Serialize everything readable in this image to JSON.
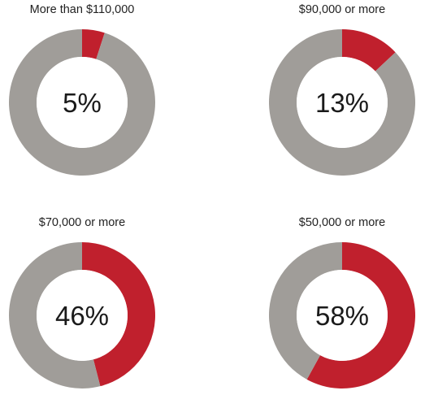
{
  "colors": {
    "highlight": "#c0202d",
    "remainder": "#a09d99",
    "center": "#ffffff",
    "text": "#1a1a1a"
  },
  "chart_data": [
    {
      "type": "pie",
      "title": "More than $110,000",
      "slices": [
        {
          "label": "share",
          "value": 5
        },
        {
          "label": "rest",
          "value": 95
        }
      ],
      "center_label": "5%"
    },
    {
      "type": "pie",
      "title": "$90,000 or more",
      "slices": [
        {
          "label": "share",
          "value": 13
        },
        {
          "label": "rest",
          "value": 87
        }
      ],
      "center_label": "13%"
    },
    {
      "type": "pie",
      "title": "$70,000 or more",
      "slices": [
        {
          "label": "share",
          "value": 46
        },
        {
          "label": "rest",
          "value": 54
        }
      ],
      "center_label": "46%"
    },
    {
      "type": "pie",
      "title": "$50,000 or more",
      "slices": [
        {
          "label": "share",
          "value": 58
        },
        {
          "label": "rest",
          "value": 42
        }
      ],
      "center_label": "58%"
    }
  ]
}
